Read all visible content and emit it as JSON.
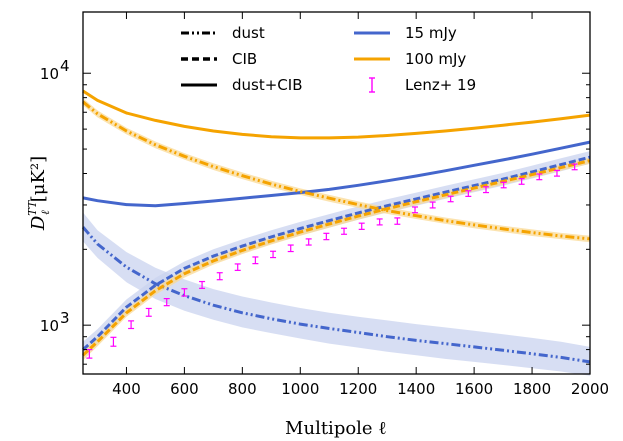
{
  "chart_data": {
    "type": "line",
    "xlabel": "Multipole ℓ",
    "ylabel_main": "D",
    "ylabel_sub": "ℓ",
    "ylabel_sup": "TT",
    "ylabel_units": "[μK²]",
    "xlim": [
      250,
      2000
    ],
    "ylim": [
      640,
      17500
    ],
    "yscale": "log",
    "grid": false,
    "legend_position": "top-center",
    "x_ticks": [
      400,
      600,
      800,
      1000,
      1200,
      1400,
      1600,
      1800,
      2000
    ],
    "x_tick_labels": [
      "400",
      "600",
      "800",
      "1000",
      "1200",
      "1400",
      "1600",
      "1800",
      "2000"
    ],
    "y_ticks": [
      1000,
      10000
    ],
    "y_tick_base": "10",
    "y_tick_exponents": [
      "3",
      "4"
    ],
    "x": [
      250,
      300,
      400,
      500,
      600,
      700,
      800,
      900,
      1000,
      1100,
      1200,
      1300,
      1400,
      1500,
      1600,
      1700,
      1800,
      1900,
      2000
    ],
    "line_styles": [
      {
        "label": "dust",
        "dash": "dashdot"
      },
      {
        "label": "CIB",
        "dash": "dashed"
      },
      {
        "label": "dust+CIB",
        "dash": "solid"
      }
    ],
    "flux_cuts": [
      {
        "label": "15 mJy",
        "color": "#4466cc",
        "band_color": "#c9d3ef"
      },
      {
        "label": "100 mJy",
        "color": "#f5a300",
        "band_color": "#f9d994"
      }
    ],
    "series": [
      {
        "flux": "15 mJy",
        "component": "dust",
        "values": [
          2450,
          2100,
          1700,
          1460,
          1310,
          1200,
          1120,
          1060,
          1010,
          970,
          935,
          900,
          870,
          845,
          820,
          795,
          770,
          745,
          715
        ],
        "band_lower": [
          2150,
          1850,
          1480,
          1270,
          1140,
          1050,
          980,
          930,
          885,
          845,
          815,
          785,
          760,
          735,
          715,
          695,
          675,
          655,
          630
        ],
        "band_upper": [
          2800,
          2380,
          1950,
          1690,
          1520,
          1390,
          1300,
          1230,
          1170,
          1120,
          1080,
          1045,
          1010,
          980,
          950,
          920,
          890,
          860,
          820
        ]
      },
      {
        "flux": "15 mJy",
        "component": "CIB",
        "values": [
          800,
          900,
          1180,
          1440,
          1680,
          1880,
          2060,
          2240,
          2420,
          2600,
          2790,
          2980,
          3170,
          3370,
          3580,
          3800,
          4060,
          4340,
          4640
        ],
        "band_lower": [
          740,
          840,
          1100,
          1340,
          1570,
          1760,
          1930,
          2100,
          2270,
          2440,
          2620,
          2800,
          2980,
          3170,
          3370,
          3580,
          3820,
          4080,
          4370
        ],
        "band_upper": [
          860,
          965,
          1265,
          1540,
          1790,
          2000,
          2190,
          2380,
          2570,
          2760,
          2960,
          3160,
          3360,
          3570,
          3790,
          4020,
          4300,
          4600,
          4910
        ]
      },
      {
        "flux": "15 mJy",
        "component": "dust+CIB",
        "values": [
          3200,
          3120,
          3010,
          2980,
          3040,
          3110,
          3190,
          3270,
          3360,
          3460,
          3590,
          3740,
          3910,
          4100,
          4310,
          4530,
          4770,
          5040,
          5330
        ]
      },
      {
        "flux": "100 mJy",
        "component": "dust",
        "values": [
          7700,
          6900,
          5900,
          5200,
          4680,
          4260,
          3920,
          3630,
          3390,
          3190,
          3010,
          2850,
          2720,
          2600,
          2500,
          2410,
          2330,
          2260,
          2200
        ],
        "band_lower": [
          7450,
          6680,
          5720,
          5040,
          4540,
          4130,
          3800,
          3520,
          3290,
          3090,
          2920,
          2765,
          2640,
          2525,
          2425,
          2340,
          2260,
          2195,
          2135
        ],
        "band_upper": [
          7950,
          7120,
          6080,
          5360,
          4820,
          4390,
          4040,
          3740,
          3490,
          3290,
          3100,
          2935,
          2800,
          2675,
          2575,
          2480,
          2400,
          2325,
          2265
        ]
      },
      {
        "flux": "100 mJy",
        "component": "CIB",
        "values": [
          760,
          860,
          1120,
          1370,
          1600,
          1800,
          1980,
          2160,
          2340,
          2520,
          2710,
          2900,
          3090,
          3290,
          3500,
          3720,
          3960,
          4220,
          4500
        ],
        "band_lower": [
          725,
          825,
          1080,
          1320,
          1545,
          1740,
          1915,
          2090,
          2265,
          2440,
          2625,
          2810,
          2995,
          3190,
          3395,
          3610,
          3845,
          4100,
          4370
        ],
        "band_upper": [
          795,
          895,
          1160,
          1420,
          1655,
          1860,
          2045,
          2230,
          2415,
          2600,
          2795,
          2990,
          3185,
          3390,
          3605,
          3830,
          4075,
          4340,
          4630
        ]
      },
      {
        "flux": "100 mJy",
        "component": "dust+CIB",
        "values": [
          8500,
          7800,
          6950,
          6500,
          6150,
          5900,
          5720,
          5600,
          5540,
          5540,
          5580,
          5660,
          5770,
          5900,
          6050,
          6220,
          6400,
          6600,
          6820
        ]
      }
    ],
    "measurement": {
      "label": "Lenz+ 19",
      "color": "#ff00ff",
      "x": [
        272,
        355,
        416,
        477,
        539,
        600,
        661,
        722,
        784,
        845,
        906,
        967,
        1029,
        1090,
        1151,
        1212,
        1274,
        1335,
        1396,
        1457,
        1519,
        1580,
        1641,
        1702,
        1764,
        1825,
        1886,
        1947
      ],
      "y": [
        770,
        860,
        1005,
        1125,
        1235,
        1350,
        1445,
        1565,
        1700,
        1810,
        1910,
        2020,
        2140,
        2250,
        2360,
        2470,
        2570,
        2590,
        2870,
        3000,
        3170,
        3330,
        3450,
        3600,
        3720,
        3880,
        4010,
        4250
      ],
      "err": [
        30,
        35,
        35,
        40,
        40,
        45,
        45,
        50,
        50,
        55,
        55,
        60,
        60,
        65,
        65,
        70,
        70,
        75,
        75,
        80,
        80,
        85,
        90,
        90,
        95,
        100,
        105,
        110
      ]
    }
  }
}
